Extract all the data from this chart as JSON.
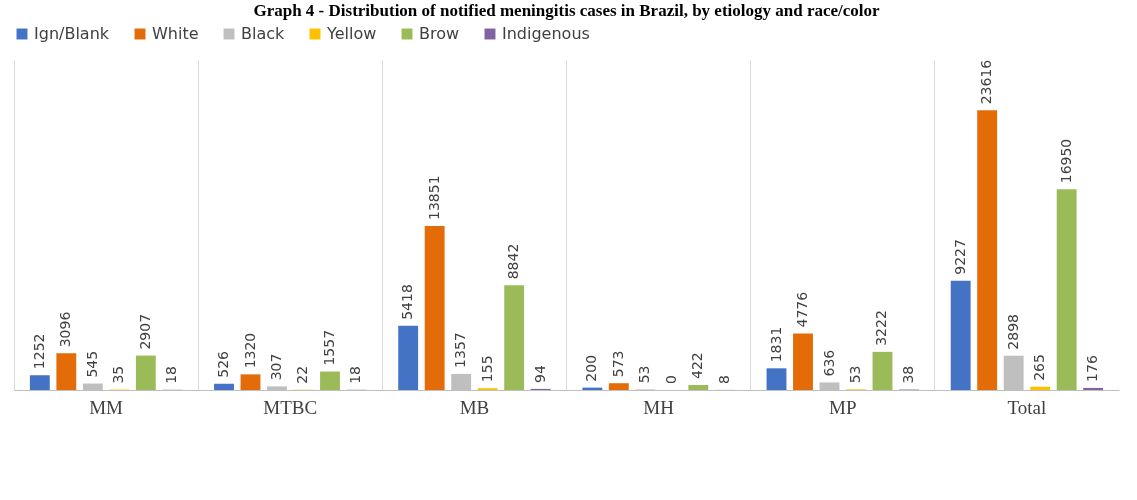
{
  "chart_data": {
    "type": "bar",
    "title": "Graph 4 - Distribution of notified meningitis cases in Brazil, by etiology and race/color",
    "categories": [
      "MM",
      "MTBC",
      "MB",
      "MH",
      "MP",
      "Total"
    ],
    "series": [
      {
        "name": "Ign/Blank",
        "color": "#4472c4",
        "values": [
          1252,
          526,
          5418,
          200,
          1831,
          9227
        ]
      },
      {
        "name": "White",
        "color": "#e36c09",
        "values": [
          3096,
          1320,
          13851,
          573,
          4776,
          23616
        ]
      },
      {
        "name": "Black",
        "color": "#bfbfbf",
        "values": [
          545,
          307,
          1357,
          53,
          636,
          2898
        ]
      },
      {
        "name": "Yellow",
        "color": "#ffc000",
        "values": [
          35,
          22,
          155,
          0,
          53,
          265
        ]
      },
      {
        "name": "Brow",
        "color": "#9bbb59",
        "values": [
          2907,
          1557,
          8842,
          422,
          3222,
          16950
        ]
      },
      {
        "name": "Indigenous",
        "color": "#8064a2",
        "values": [
          18,
          18,
          94,
          8,
          38,
          176
        ]
      }
    ],
    "data_labels": true,
    "legend": "top",
    "grid": "x",
    "tick_labels": "x"
  }
}
